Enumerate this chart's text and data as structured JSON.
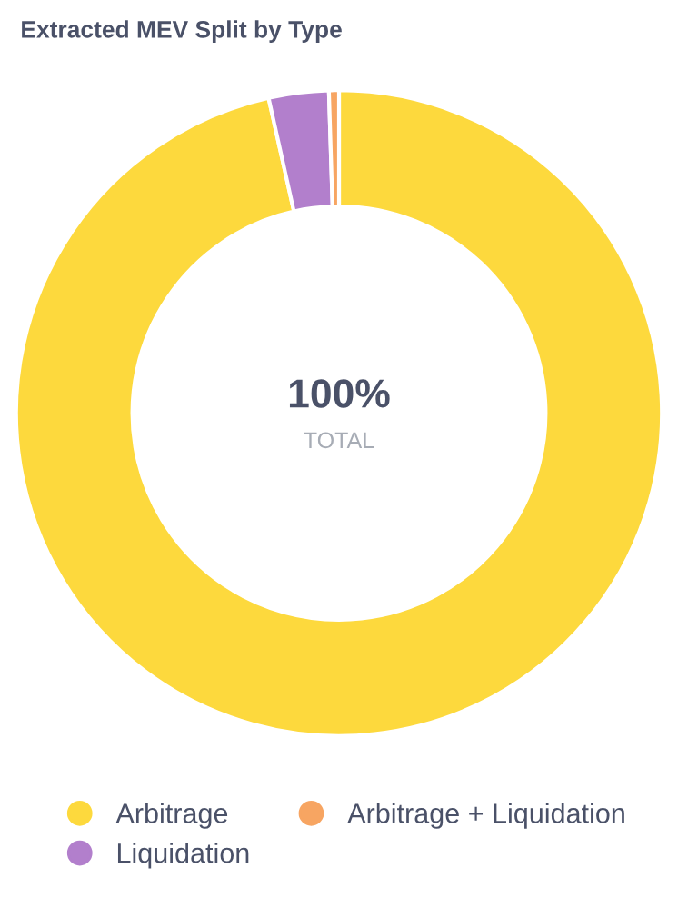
{
  "chart_data": {
    "type": "donut",
    "title": "Extracted MEV Split by Type",
    "categories": [
      "Arbitrage",
      "Liquidation",
      "Arbitrage + Liquidation"
    ],
    "values": [
      96.5,
      3.0,
      0.5
    ],
    "colors": [
      "#fdd93d",
      "#b27fcc",
      "#f7a562"
    ],
    "annotations": [
      "100%",
      "TOTAL"
    ],
    "legend": "bottom"
  }
}
